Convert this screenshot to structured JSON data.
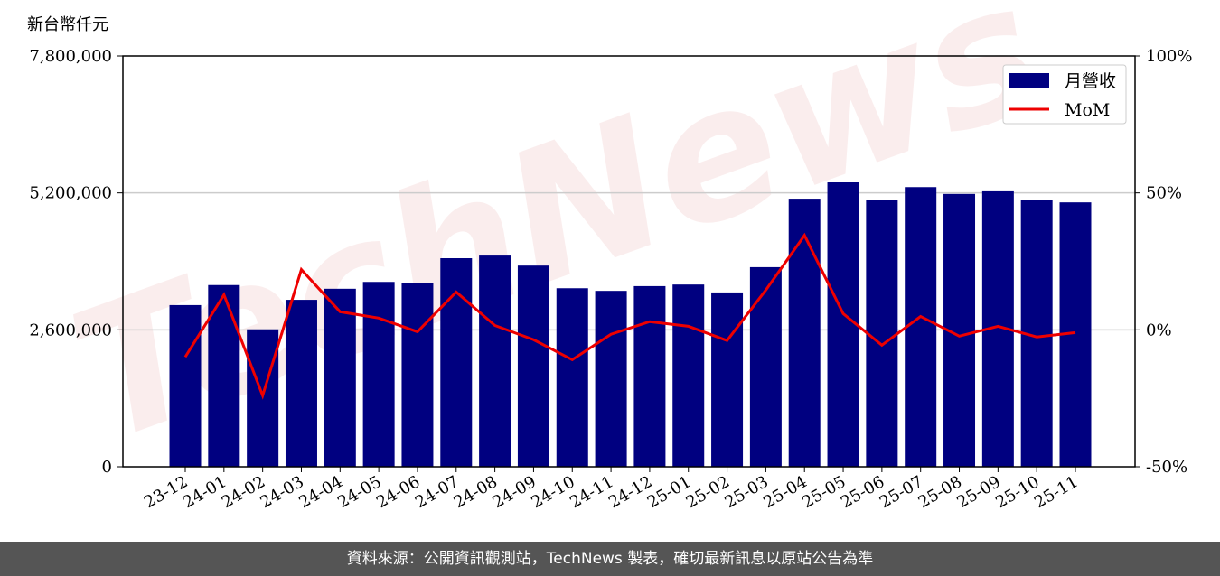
{
  "chart_data": {
    "type": "bar_line",
    "ylabel": "新台幣仟元",
    "watermark": "TechNews",
    "footer": "資料來源：公開資訊觀測站，TechNews 製表，確切最新訊息以原站公告為準",
    "categories": [
      "23-12",
      "24-01",
      "24-02",
      "24-03",
      "24-04",
      "24-05",
      "24-06",
      "24-07",
      "24-08",
      "24-09",
      "24-10",
      "24-11",
      "24-12",
      "25-01",
      "25-02",
      "25-03",
      "25-04",
      "25-05",
      "25-06",
      "25-07",
      "25-08",
      "25-09",
      "25-10",
      "25-11"
    ],
    "series": [
      {
        "name": "月營收",
        "color": "#000080",
        "values": [
          3070000,
          3450000,
          2610000,
          3170000,
          3380000,
          3510000,
          3480000,
          3960000,
          4010000,
          3820000,
          3390000,
          3340000,
          3430000,
          3460000,
          3310000,
          3790000,
          5090000,
          5400000,
          5060000,
          5310000,
          5180000,
          5230000,
          5070000,
          5020000
        ]
      },
      {
        "name": "MoM",
        "color": "#ee0000",
        "axis": "y2",
        "values": [
          -9.9,
          12.8,
          -24,
          22,
          6.6,
          4.3,
          -0.7,
          13.8,
          1.6,
          -3.6,
          -10.9,
          -1.6,
          3,
          1.3,
          -3.9,
          14.5,
          34.5,
          5.9,
          -5.6,
          4.9,
          -2.3,
          1.3,
          -2.6,
          -1
        ]
      }
    ],
    "ylim": [
      0,
      7800000
    ],
    "yticks": [
      0,
      {
        "value": 2600000,
        "label": "2,600,000"
      },
      {
        "value": 5200000,
        "label": "5,200,000"
      },
      {
        "value": 7800000,
        "label": "7,800,000"
      }
    ],
    "y2lim": [
      -50,
      100
    ],
    "y2ticks": [
      {
        "value": -50,
        "label": "-50%"
      },
      {
        "value": 0,
        "label": "0%"
      },
      {
        "value": 50,
        "label": "50%"
      },
      {
        "value": 100,
        "label": "100%"
      }
    ],
    "grid": true,
    "legend": "upper right"
  }
}
